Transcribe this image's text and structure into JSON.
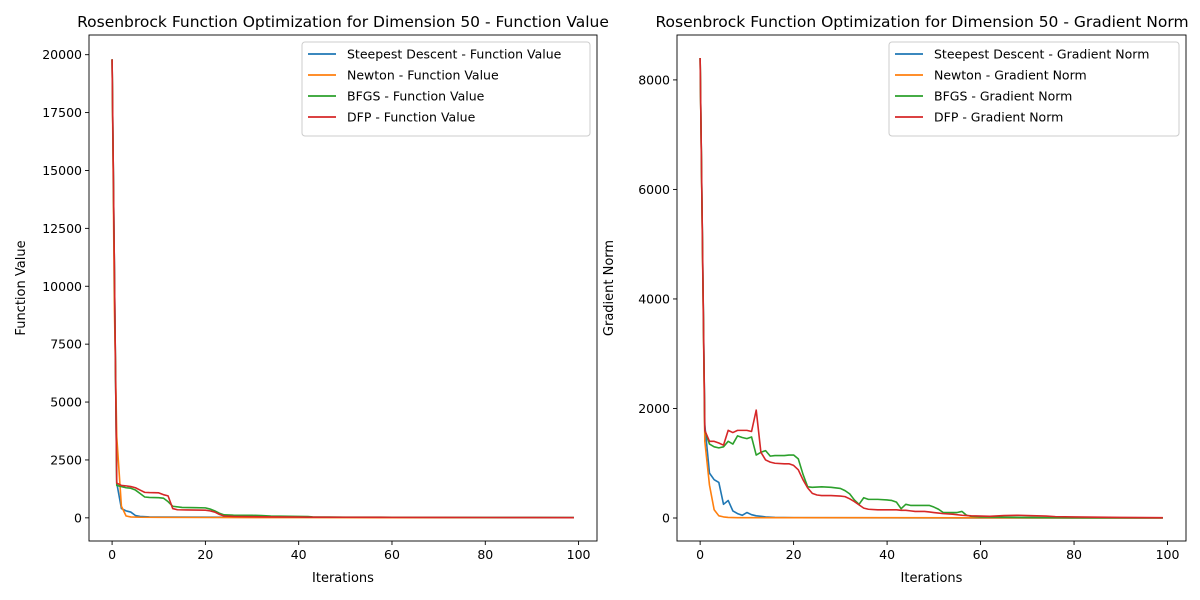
{
  "colors": {
    "Steepest Descent": "#1f77b4",
    "Newton": "#ff7f0e",
    "BFGS": "#2ca02c",
    "DFP": "#d62728"
  },
  "chart_data": [
    {
      "type": "line",
      "title": "Rosenbrock Function Optimization for Dimension 50 - Function Value",
      "xlabel": "Iterations",
      "ylabel": "Function Value",
      "xlim": [
        -4.95,
        103.95
      ],
      "ylim": [
        -1000,
        20850
      ],
      "xticks": [
        0,
        20,
        40,
        60,
        80,
        100
      ],
      "yticks": [
        0,
        2500,
        5000,
        7500,
        10000,
        12500,
        15000,
        17500,
        20000
      ],
      "legend_position": "top-right",
      "series": [
        {
          "name": "Steepest Descent - Function Value",
          "key": "Steepest Descent",
          "points": [
            [
              0,
              19800
            ],
            [
              1,
              1500
            ],
            [
              2,
              400
            ],
            [
              3,
              300
            ],
            [
              4,
              250
            ],
            [
              5,
              100
            ],
            [
              6,
              60
            ],
            [
              8,
              40
            ],
            [
              10,
              35
            ],
            [
              20,
              30
            ],
            [
              40,
              20
            ],
            [
              60,
              15
            ],
            [
              80,
              12
            ],
            [
              99,
              10
            ]
          ]
        },
        {
          "name": "Newton - Function Value",
          "key": "Newton",
          "points": [
            [
              0,
              19800
            ],
            [
              0.5,
              9000
            ],
            [
              1,
              3500
            ],
            [
              2,
              500
            ],
            [
              3,
              80
            ],
            [
              4,
              40
            ],
            [
              6,
              25
            ],
            [
              10,
              20
            ],
            [
              20,
              15
            ],
            [
              40,
              10
            ],
            [
              60,
              8
            ],
            [
              80,
              6
            ],
            [
              99,
              5
            ]
          ]
        },
        {
          "name": "BFGS - Function Value",
          "key": "BFGS",
          "points": [
            [
              0,
              19800
            ],
            [
              1,
              1400
            ],
            [
              2,
              1350
            ],
            [
              3,
              1300
            ],
            [
              4,
              1280
            ],
            [
              5,
              1200
            ],
            [
              6,
              1050
            ],
            [
              7,
              900
            ],
            [
              8,
              880
            ],
            [
              10,
              870
            ],
            [
              11,
              850
            ],
            [
              12,
              700
            ],
            [
              13,
              500
            ],
            [
              15,
              450
            ],
            [
              18,
              440
            ],
            [
              20,
              430
            ],
            [
              21,
              380
            ],
            [
              22,
              300
            ],
            [
              23,
              200
            ],
            [
              24,
              130
            ],
            [
              26,
              115
            ],
            [
              30,
              110
            ],
            [
              32,
              100
            ],
            [
              34,
              80
            ],
            [
              36,
              70
            ],
            [
              40,
              60
            ],
            [
              42,
              55
            ],
            [
              43,
              40
            ],
            [
              50,
              30
            ],
            [
              60,
              25
            ],
            [
              70,
              20
            ],
            [
              80,
              15
            ],
            [
              90,
              10
            ],
            [
              99,
              8
            ]
          ]
        },
        {
          "name": "DFP - Function Value",
          "key": "DFP",
          "points": [
            [
              0,
              19800
            ],
            [
              1,
              1500
            ],
            [
              2,
              1400
            ],
            [
              3,
              1380
            ],
            [
              4,
              1350
            ],
            [
              5,
              1300
            ],
            [
              6,
              1200
            ],
            [
              7,
              1100
            ],
            [
              8,
              1090
            ],
            [
              10,
              1080
            ],
            [
              11,
              1000
            ],
            [
              12,
              950
            ],
            [
              13,
              400
            ],
            [
              14,
              350
            ],
            [
              16,
              340
            ],
            [
              20,
              330
            ],
            [
              21,
              300
            ],
            [
              22,
              250
            ],
            [
              23,
              150
            ],
            [
              24,
              80
            ],
            [
              26,
              60
            ],
            [
              30,
              50
            ],
            [
              32,
              45
            ],
            [
              35,
              40
            ],
            [
              40,
              35
            ],
            [
              42,
              30
            ],
            [
              50,
              25
            ],
            [
              60,
              20
            ],
            [
              70,
              18
            ],
            [
              80,
              15
            ],
            [
              90,
              10
            ],
            [
              99,
              8
            ]
          ]
        }
      ]
    },
    {
      "type": "line",
      "title": "Rosenbrock Function Optimization for Dimension 50 - Gradient Norm",
      "xlabel": "Iterations",
      "ylabel": "Gradient Norm",
      "xlim": [
        -4.95,
        103.95
      ],
      "ylim": [
        -420,
        8820
      ],
      "xticks": [
        0,
        20,
        40,
        60,
        80,
        100
      ],
      "yticks": [
        0,
        2000,
        4000,
        6000,
        8000
      ],
      "legend_position": "top-right",
      "series": [
        {
          "name": "Steepest Descent - Gradient Norm",
          "key": "Steepest Descent",
          "points": [
            [
              0,
              8400
            ],
            [
              1,
              1700
            ],
            [
              2,
              820
            ],
            [
              3,
              700
            ],
            [
              4,
              650
            ],
            [
              5,
              250
            ],
            [
              6,
              320
            ],
            [
              7,
              130
            ],
            [
              8,
              80
            ],
            [
              9,
              50
            ],
            [
              10,
              100
            ],
            [
              11,
              60
            ],
            [
              12,
              40
            ],
            [
              14,
              20
            ],
            [
              16,
              10
            ],
            [
              20,
              5
            ],
            [
              40,
              3
            ],
            [
              60,
              2
            ],
            [
              80,
              2
            ],
            [
              99,
              1
            ]
          ]
        },
        {
          "name": "Newton - Gradient Norm",
          "key": "Newton",
          "points": [
            [
              0,
              8400
            ],
            [
              1,
              1400
            ],
            [
              2,
              600
            ],
            [
              3,
              150
            ],
            [
              4,
              40
            ],
            [
              5,
              20
            ],
            [
              6,
              10
            ],
            [
              8,
              5
            ],
            [
              20,
              5
            ],
            [
              40,
              5
            ],
            [
              60,
              3
            ],
            [
              80,
              2
            ],
            [
              99,
              2
            ]
          ]
        },
        {
          "name": "BFGS - Gradient Norm",
          "key": "BFGS",
          "points": [
            [
              0,
              8400
            ],
            [
              1,
              1600
            ],
            [
              2,
              1350
            ],
            [
              3,
              1300
            ],
            [
              4,
              1280
            ],
            [
              5,
              1300
            ],
            [
              6,
              1400
            ],
            [
              7,
              1350
            ],
            [
              8,
              1500
            ],
            [
              9,
              1470
            ],
            [
              10,
              1450
            ],
            [
              11,
              1480
            ],
            [
              12,
              1150
            ],
            [
              13,
              1200
            ],
            [
              14,
              1230
            ],
            [
              15,
              1130
            ],
            [
              16,
              1140
            ],
            [
              18,
              1140
            ],
            [
              19,
              1150
            ],
            [
              20,
              1150
            ],
            [
              21,
              1080
            ],
            [
              22,
              800
            ],
            [
              23,
              570
            ],
            [
              24,
              560
            ],
            [
              26,
              570
            ],
            [
              28,
              560
            ],
            [
              30,
              540
            ],
            [
              31,
              500
            ],
            [
              32,
              440
            ],
            [
              33,
              330
            ],
            [
              34,
              250
            ],
            [
              35,
              370
            ],
            [
              36,
              340
            ],
            [
              38,
              340
            ],
            [
              40,
              330
            ],
            [
              41,
              320
            ],
            [
              42,
              290
            ],
            [
              43,
              170
            ],
            [
              44,
              250
            ],
            [
              45,
              230
            ],
            [
              48,
              230
            ],
            [
              49,
              230
            ],
            [
              50,
              200
            ],
            [
              51,
              160
            ],
            [
              52,
              100
            ],
            [
              55,
              100
            ],
            [
              56,
              120
            ],
            [
              57,
              50
            ],
            [
              58,
              30
            ],
            [
              60,
              20
            ],
            [
              70,
              10
            ],
            [
              80,
              5
            ],
            [
              99,
              3
            ]
          ]
        },
        {
          "name": "DFP - Gradient Norm",
          "key": "DFP",
          "points": [
            [
              0,
              8400
            ],
            [
              1,
              1600
            ],
            [
              2,
              1400
            ],
            [
              3,
              1400
            ],
            [
              4,
              1370
            ],
            [
              5,
              1330
            ],
            [
              6,
              1600
            ],
            [
              7,
              1560
            ],
            [
              8,
              1600
            ],
            [
              10,
              1600
            ],
            [
              11,
              1580
            ],
            [
              12,
              1970
            ],
            [
              13,
              1200
            ],
            [
              14,
              1060
            ],
            [
              15,
              1020
            ],
            [
              16,
              1000
            ],
            [
              18,
              990
            ],
            [
              19,
              990
            ],
            [
              20,
              960
            ],
            [
              21,
              880
            ],
            [
              22,
              700
            ],
            [
              23,
              550
            ],
            [
              24,
              450
            ],
            [
              25,
              420
            ],
            [
              26,
              410
            ],
            [
              28,
              410
            ],
            [
              30,
              400
            ],
            [
              31,
              390
            ],
            [
              32,
              350
            ],
            [
              33,
              300
            ],
            [
              34,
              240
            ],
            [
              35,
              180
            ],
            [
              36,
              160
            ],
            [
              38,
              150
            ],
            [
              42,
              150
            ],
            [
              43,
              140
            ],
            [
              44,
              140
            ],
            [
              45,
              130
            ],
            [
              46,
              120
            ],
            [
              48,
              120
            ],
            [
              49,
              110
            ],
            [
              50,
              100
            ],
            [
              51,
              90
            ],
            [
              52,
              80
            ],
            [
              54,
              70
            ],
            [
              56,
              50
            ],
            [
              58,
              40
            ],
            [
              60,
              35
            ],
            [
              62,
              30
            ],
            [
              65,
              45
            ],
            [
              68,
              50
            ],
            [
              70,
              45
            ],
            [
              72,
              40
            ],
            [
              74,
              35
            ],
            [
              76,
              25
            ],
            [
              80,
              20
            ],
            [
              85,
              15
            ],
            [
              90,
              10
            ],
            [
              99,
              5
            ]
          ]
        }
      ]
    }
  ]
}
